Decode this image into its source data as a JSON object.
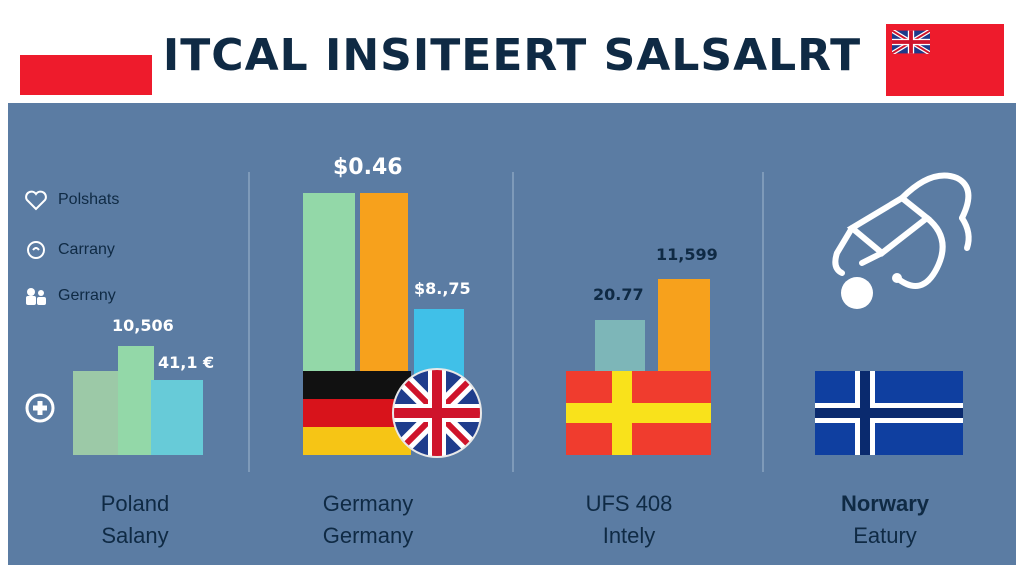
{
  "header": {
    "title": "ITCAL INSITEERT SALSALRT"
  },
  "legend": {
    "items": [
      {
        "label": "Polshats",
        "icon": "heart-icon"
      },
      {
        "label": "Carrany",
        "icon": "coin-icon"
      },
      {
        "label": "Gerrany",
        "icon": "people-icon"
      }
    ]
  },
  "colors": {
    "panel": "#5b7ca3",
    "accent_red": "#ee1b2c",
    "green": "#93d8a8",
    "orange": "#f7a11c",
    "cyan": "#4cc4e4",
    "teal": "#7db6b8"
  },
  "chart_data": [
    {
      "type": "bar",
      "group": "Poland",
      "values": [
        null,
        null,
        null
      ],
      "data_labels": [
        "10,506",
        "41,1 €"
      ],
      "footer": [
        "Poland",
        "Salany"
      ]
    },
    {
      "type": "bar",
      "group": "Germany",
      "values": [
        null,
        null,
        null
      ],
      "data_labels": [
        "$0.46",
        "$8.,75"
      ],
      "footer": [
        "Germany",
        "Germany"
      ]
    },
    {
      "type": "bar",
      "group": "UFS 408",
      "values": [
        20.77,
        11599
      ],
      "data_labels": [
        "20.77",
        "11,599"
      ],
      "footer": [
        "UFS  408",
        "Intely"
      ]
    },
    {
      "type": "bar",
      "group": "Norway",
      "values": [],
      "data_labels": [],
      "footer": [
        "Norwary",
        "Eatury"
      ]
    }
  ]
}
